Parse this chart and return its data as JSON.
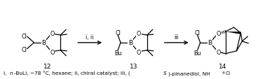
{
  "background_color": "#ffffff",
  "figsize": [
    3.78,
    1.14
  ],
  "dpi": 100,
  "line_color": "#000000",
  "text_color": "#000000",
  "compound_labels": [
    "12",
    "13",
    "14"
  ],
  "arrow_labels": [
    "i, ii",
    "iii"
  ],
  "footnote_parts": [
    {
      "text": "i, ",
      "style": "normal"
    },
    {
      "text": "n",
      "style": "italic"
    },
    {
      "text": "-BuLi, -78 °C, hexane; ii, chiral catalyst; iii, (",
      "style": "normal"
    },
    {
      "text": "S",
      "style": "italic"
    },
    {
      "text": ")-pinanediol, NH",
      "style": "normal"
    },
    {
      "text": "4",
      "style": "sub"
    },
    {
      "text": "Cl",
      "style": "normal"
    }
  ]
}
